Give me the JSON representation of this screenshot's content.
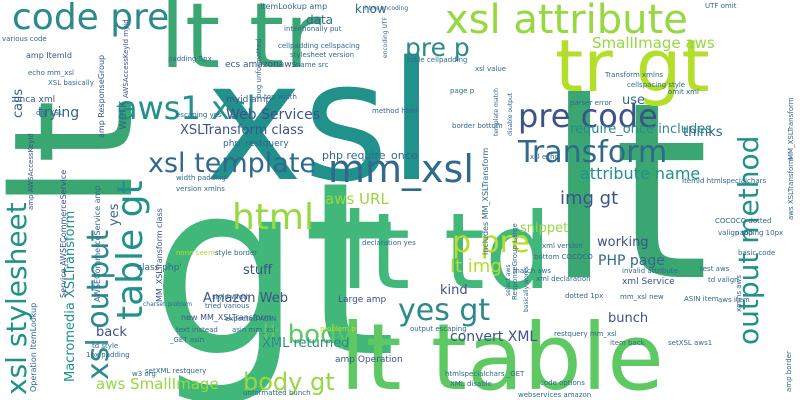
{
  "words": {
    "gt": "gt",
    "lt": "lt",
    "xsl": "xsl",
    "lt_table": "lt table",
    "lt_td": "lt td",
    "tr_gt": "tr gt",
    "lt_tr": "lt tr",
    "xsl_attribute": "xsl attribute",
    "code_pre": "code pre",
    "pre_code": "pre code",
    "mm_xsl": "mm_xsl",
    "transform": "Transform",
    "aws1_xsl": "aws1 xsl",
    "xsl_template": "xsl template",
    "html": "html",
    "table_gt": "table gt",
    "xsl_stylesheet": "xsl stylesheet",
    "xsl_output": "xsl output",
    "output_method": "output method",
    "yes_gt": "yes gt",
    "p_pre": "p pre",
    "pre_p": "pre p",
    "lt_body": "lt body",
    "body_gt": "body gt",
    "web_services": "Web Services",
    "xsltransform_class": "XSLTransform class",
    "attribute_name": "attribute name",
    "smallimage_aws": "SmallImage aws",
    "img_gt": "img gt",
    "aws_url": "aws URL",
    "lt_img": "lt img",
    "convert_xml": "convert XML",
    "xml_returned": "XML returned",
    "php_page": "PHP page",
    "amazon_web": "Amazon Web",
    "aws_smallimage": "aws SmallImage",
    "macromedia": "Macromedia XSLTransform",
    "require_once_includes": "require_once includes",
    "php_require_once": "php require_once",
    "data": "data",
    "know": "know",
    "trying": "trying",
    "snippet": "snippet",
    "stuff": "stuff",
    "kind": "kind",
    "working": "working",
    "bunch": "bunch",
    "use": "use",
    "thinks": "thinks",
    "calls": "calls",
    "yes": "yes",
    "back": "back",
    "work": "work",
    "itemlookup_amp": "ItemLookup amp",
    "amp_itemid": "amp ItemId",
    "ecs_amazonaws": "ecs amazonaws",
    "myid_amp": "myid amp",
    "php_restquery": "php' restquery",
    "class_php": "class php'",
    "amp_responsegroup": "amp ResponseGroup",
    "mm_xsltransform_class": "MM_XSLTransform class",
    "new_mm": "new MM_XSLTransform",
    "large_amp": "Large amp",
    "amp_operation": "amp Operation",
    "xml_service": "xml Service",
    "includes_mm": "includes MM_XSLTransform",
    "onca_xml": "onca xml",
    "org_xsl": "org XSL",
    "echo_mm_xsl": "echo mm_xsl",
    "xsl_basically": "XSL basically",
    "various_code": "various code",
    "amp_awsaccess": "amp AWSAccessKeyId",
    "awsaccess_myid": "AWSAccessKeyId myid",
    "awsecom_amp": "AWSECommerceService amp",
    "service_awsecom": "Service AWSECommerceService",
    "operation_itemlookup": "Operation ItemLookup",
    "responsegroup_large": "ResponseGroup Large",
    "padding_5px": "padding 5px",
    "intentionally_put": "intentionally put",
    "cellpadding_cellspacing": "cellpadding cellspacing",
    "stylesheet_version": "stylesheet version",
    "name_src": "name src",
    "html_encoding": "html encoding",
    "encoding_utf": "encoding UTF",
    "table_cellpadding": "table cellpadding",
    "utf_omit": "UTF omit",
    "xsl_value": "xsl value",
    "omit_xml": "omit xml",
    "transform_xmlns": "Transform xmlns",
    "cellspacing_style": "cellspacing style",
    "page_p": "page p",
    "parser_error": "parser error",
    "template_match": "template match",
    "disable_output": "disable output",
    "method_html": "method html",
    "border_bottom": "border bottom",
    "escaping_yes": "escaping yes",
    "top_width": "top width",
    "width_padding": "width padding",
    "version_xmlns": "version xmlns",
    "declaration_yes": "declaration yes",
    "style_width": "style width",
    "tried_various": "tried various",
    "charset_problem": "charset problem",
    "none_seems": "none seems",
    "style_border": "style border",
    "expected_asin": "expected ASIN",
    "text_instead": "text instead",
    "asin_mm_xsl": "asin mm_xsl",
    "get_asin": "_GET asin",
    "problem_p": "problem p",
    "output_escaping": "output escaping",
    "restquery_mm_xsl": "restquery mm_xsl",
    "td_style": "td style",
    "px_padding": "1px padding",
    "w3_org": "w3 org",
    "setxml_restquery": "setXML restquery",
    "unformatted_bunch": "unformatted bunch",
    "htmlspecialchars_get": "htmlspecialchars _GET",
    "xml_disable": "XML disable",
    "code_options": "code options",
    "webservices_amazon": "webservices amazon",
    "item_back": "item back",
    "setxsl_aws1": "setXSL aws1",
    "amp_border": "amp border",
    "xmlns_aws": "xmlns aws",
    "test_aws": "test aws",
    "td_valign": "td valign",
    "valign_top": "valign top",
    "cococo_dotted": "COCOCO dotted",
    "itemid_htmlspecialchars": "ItemId htmlspecialchars",
    "aws_xsltransform": "aws XSLTransform",
    "mm_xsltransform": "MM_XSLTransform",
    "aws_item": "aws item",
    "xsl_echo": "xsl echo",
    "xml_version": "xml version",
    "match_aws": "match aws",
    "bottom_cococo": "bottom COCOCO",
    "dotted_1px": "dotted 1px",
    "asin_item": "ASIN item",
    "mm_xsl_new": "mm_xsl new",
    "invalid_attribute": "invalid attribute",
    "padding_10px": "padding 10px",
    "basic_code": "basic code",
    "select_aws": "select aws",
    "xml_declaration": "xml declaration",
    "basically_works": "basically works",
    "bug_unformatted": "bug unformatted"
  },
  "colors": {
    "background": "#ffffff",
    "palette": [
      "#3aa672",
      "#2a8a8c",
      "#41b87a",
      "#5ec962",
      "#b5de2b",
      "#21918c",
      "#31688e",
      "#3b528b",
      "#95d840",
      "#20a386",
      "#46327e",
      "#440154",
      "#7ad151"
    ]
  }
}
